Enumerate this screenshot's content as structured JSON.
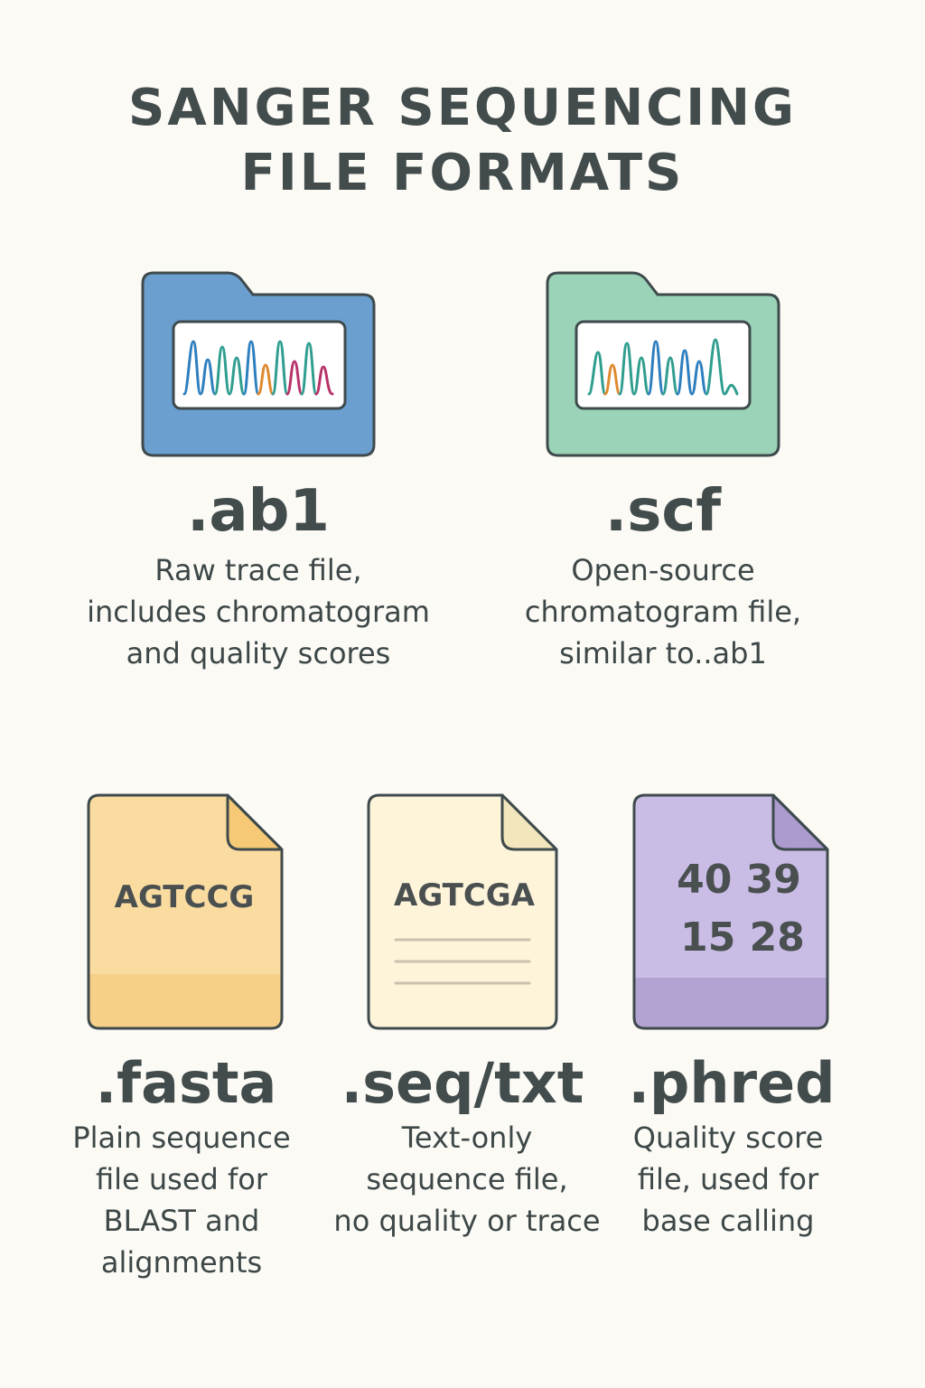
{
  "title": {
    "line1": "SANGER SEQUENCING",
    "line2": "FILE FORMATS"
  },
  "formats": [
    {
      "ext": ".ab1",
      "icon": "folder-chromatogram-icon",
      "color": "#6a9fd0",
      "desc": [
        "Raw trace file,",
        "includes chromatogram",
        "and quality scores"
      ]
    },
    {
      "ext": ".scf",
      "icon": "folder-chromatogram-icon",
      "color": "#9bd3b8",
      "desc": [
        "Open-source",
        "chromatogram file,",
        "similar to..ab1"
      ]
    },
    {
      "ext": ".fasta",
      "icon": "document-sequence-icon",
      "color": "#fbdca0",
      "sequence": "AGTCCG",
      "desc": [
        "Plain sequence",
        "file used for",
        "BLAST and",
        "alignments"
      ]
    },
    {
      "ext": ".seq/txt",
      "icon": "document-text-icon",
      "color": "#fdf4da",
      "sequence": "AGTCGA",
      "desc": [
        "Text-only",
        "sequence file,",
        "no quality or trace"
      ]
    },
    {
      "ext": ".phred",
      "icon": "document-scores-icon",
      "color": "#c9bde6",
      "scores": [
        "40 39",
        "15 28"
      ],
      "desc": [
        "Quality score",
        "file, used for",
        "base calling"
      ]
    }
  ]
}
